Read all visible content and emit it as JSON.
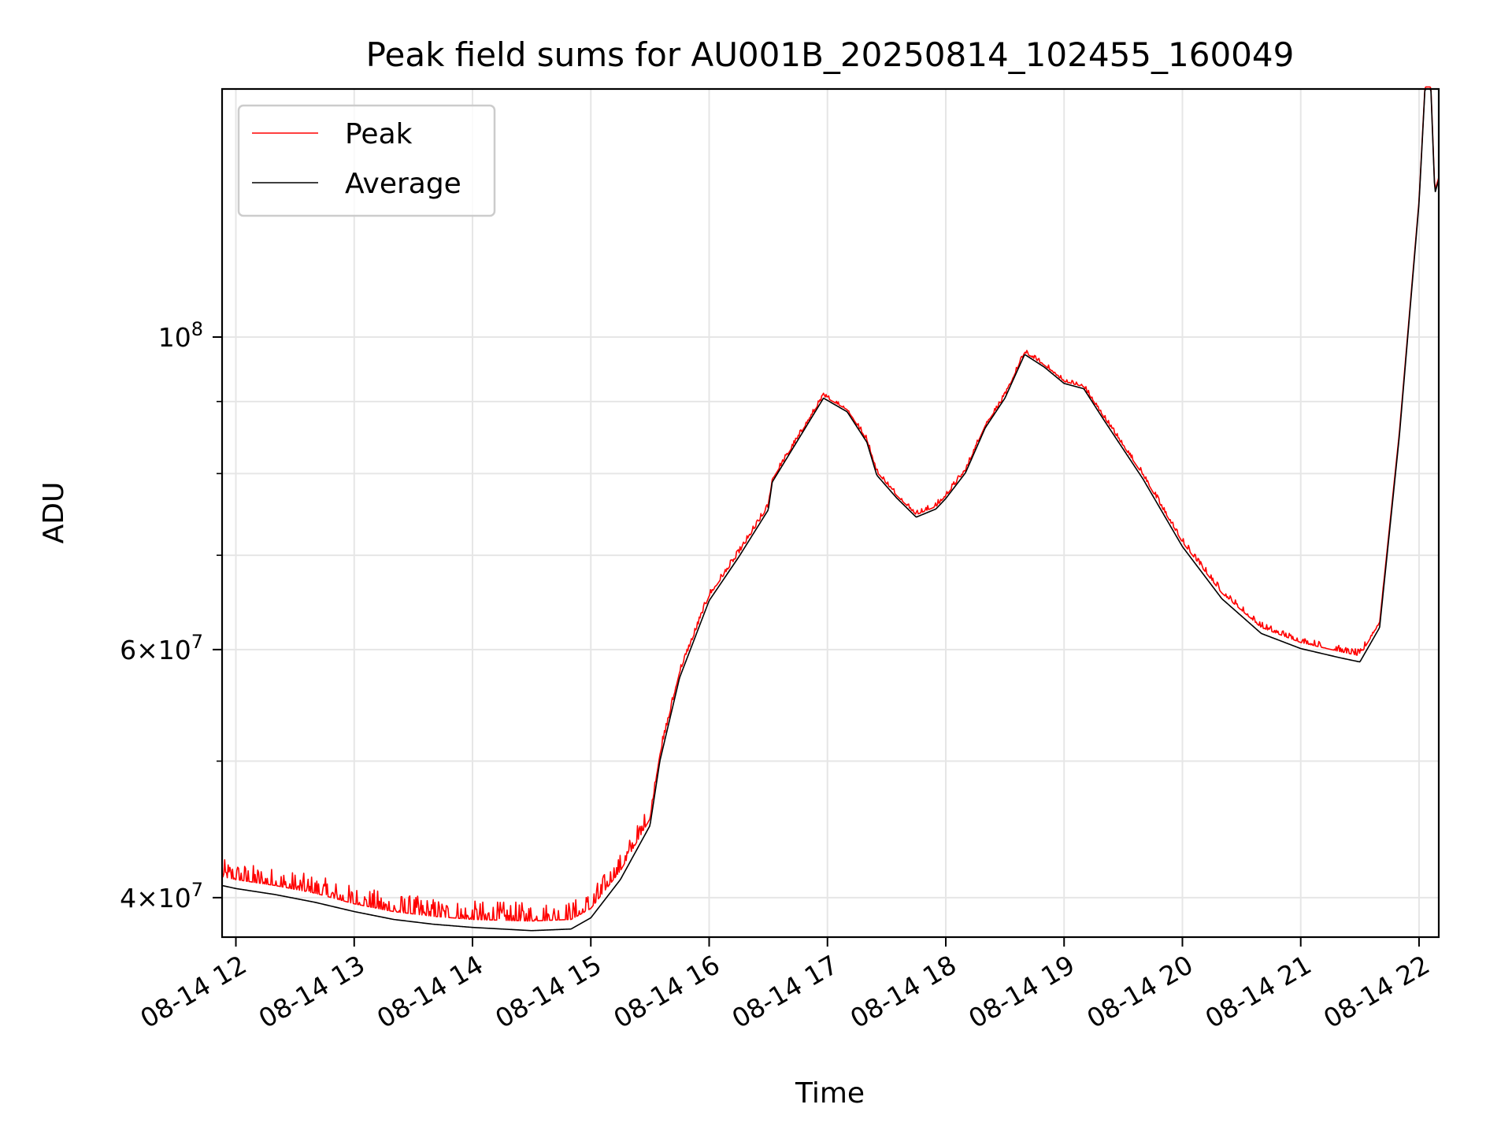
{
  "chart_data": {
    "type": "line",
    "title": "Peak field sums for AU001B_20250814_102455_160049",
    "xlabel": "Time",
    "ylabel": "ADU",
    "y_scale": "log",
    "x_axis": "time (hours on 2025-08-14)",
    "xlim": [
      "08-14 11:53",
      "08-14 22:10"
    ],
    "ylim": [
      37500000,
      150000000
    ],
    "x_ticks": [
      "08-14 12",
      "08-14 13",
      "08-14 14",
      "08-14 15",
      "08-14 16",
      "08-14 17",
      "08-14 18",
      "08-14 19",
      "08-14 20",
      "08-14 21",
      "08-14 22"
    ],
    "y_ticks": [
      {
        "value": 40000000,
        "mantissa": "4",
        "times": "×",
        "base": "10",
        "exp": "7"
      },
      {
        "value": 60000000,
        "mantissa": "6",
        "times": "×",
        "base": "10",
        "exp": "7"
      },
      {
        "value": 100000000,
        "mantissa": "",
        "times": "",
        "base": "10",
        "exp": "8"
      }
    ],
    "y_minor_ticks": [
      50000000,
      70000000,
      80000000,
      90000000
    ],
    "grid": true,
    "legend_position": "top-left",
    "series": [
      {
        "name": "Peak",
        "color": "#ff0000",
        "noise_amplitude": 1200000,
        "points": [
          [
            "08-14 11:53",
            41400000
          ],
          [
            "08-14 12:00",
            41200000
          ],
          [
            "08-14 12:20",
            40800000
          ],
          [
            "08-14 12:40",
            40300000
          ],
          [
            "08-14 13:00",
            39600000
          ],
          [
            "08-14 13:20",
            39100000
          ],
          [
            "08-14 13:40",
            38800000
          ],
          [
            "08-14 14:00",
            38600000
          ],
          [
            "08-14 14:30",
            38500000
          ],
          [
            "08-14 14:50",
            38600000
          ],
          [
            "08-14 15:00",
            39300000
          ],
          [
            "08-14 15:15",
            41800000
          ],
          [
            "08-14 15:30",
            45500000
          ],
          [
            "08-14 15:35",
            50500000
          ],
          [
            "08-14 15:45",
            57800000
          ],
          [
            "08-14 16:00",
            65500000
          ],
          [
            "08-14 16:15",
            70200000
          ],
          [
            "08-14 16:30",
            75800000
          ],
          [
            "08-14 16:32",
            79200000
          ],
          [
            "08-14 16:45",
            84800000
          ],
          [
            "08-14 16:58",
            90800000
          ],
          [
            "08-14 17:10",
            88800000
          ],
          [
            "08-14 17:20",
            84500000
          ],
          [
            "08-14 17:25",
            80200000
          ],
          [
            "08-14 17:35",
            77200000
          ],
          [
            "08-14 17:45",
            74800000
          ],
          [
            "08-14 17:55",
            75800000
          ],
          [
            "08-14 18:00",
            77100000
          ],
          [
            "08-14 18:10",
            80400000
          ],
          [
            "08-14 18:20",
            86500000
          ],
          [
            "08-14 18:30",
            90800000
          ],
          [
            "08-14 18:40",
            97500000
          ],
          [
            "08-14 18:50",
            95500000
          ],
          [
            "08-14 19:00",
            93000000
          ],
          [
            "08-14 19:10",
            92200000
          ],
          [
            "08-14 19:20",
            87800000
          ],
          [
            "08-14 19:40",
            79800000
          ],
          [
            "08-14 20:00",
            71500000
          ],
          [
            "08-14 20:20",
            65800000
          ],
          [
            "08-14 20:40",
            62200000
          ],
          [
            "08-14 21:00",
            60700000
          ],
          [
            "08-14 21:20",
            59800000
          ],
          [
            "08-14 21:30",
            59400000
          ],
          [
            "08-14 21:40",
            62700000
          ],
          [
            "08-14 21:50",
            85500000
          ],
          [
            "08-14 22:00",
            125000000
          ],
          [
            "08-14 22:03",
            150500000
          ],
          [
            "08-14 22:06",
            150500000
          ],
          [
            "08-14 22:08",
            127000000
          ],
          [
            "08-14 22:10",
            129800000
          ]
        ]
      },
      {
        "name": "Average",
        "color": "#000000",
        "noise_amplitude": 0,
        "points": [
          [
            "08-14 11:53",
            40800000
          ],
          [
            "08-14 12:00",
            40600000
          ],
          [
            "08-14 12:20",
            40200000
          ],
          [
            "08-14 12:40",
            39700000
          ],
          [
            "08-14 13:00",
            39100000
          ],
          [
            "08-14 13:20",
            38600000
          ],
          [
            "08-14 13:40",
            38300000
          ],
          [
            "08-14 14:00",
            38100000
          ],
          [
            "08-14 14:30",
            37900000
          ],
          [
            "08-14 14:50",
            38000000
          ],
          [
            "08-14 15:00",
            38700000
          ],
          [
            "08-14 15:15",
            41200000
          ],
          [
            "08-14 15:30",
            45000000
          ],
          [
            "08-14 15:35",
            50000000
          ],
          [
            "08-14 15:45",
            57300000
          ],
          [
            "08-14 16:00",
            65000000
          ],
          [
            "08-14 16:15",
            69800000
          ],
          [
            "08-14 16:30",
            75400000
          ],
          [
            "08-14 16:32",
            78900000
          ],
          [
            "08-14 16:45",
            84500000
          ],
          [
            "08-14 16:58",
            90500000
          ],
          [
            "08-14 17:10",
            88500000
          ],
          [
            "08-14 17:20",
            84200000
          ],
          [
            "08-14 17:25",
            79800000
          ],
          [
            "08-14 17:35",
            76900000
          ],
          [
            "08-14 17:45",
            74500000
          ],
          [
            "08-14 17:55",
            75500000
          ],
          [
            "08-14 18:00",
            76800000
          ],
          [
            "08-14 18:10",
            80100000
          ],
          [
            "08-14 18:20",
            86200000
          ],
          [
            "08-14 18:30",
            90500000
          ],
          [
            "08-14 18:40",
            97200000
          ],
          [
            "08-14 18:50",
            95200000
          ],
          [
            "08-14 19:00",
            92700000
          ],
          [
            "08-14 19:10",
            91900000
          ],
          [
            "08-14 19:20",
            87400000
          ],
          [
            "08-14 19:40",
            79300000
          ],
          [
            "08-14 20:00",
            71000000
          ],
          [
            "08-14 20:20",
            65200000
          ],
          [
            "08-14 20:40",
            61600000
          ],
          [
            "08-14 21:00",
            60100000
          ],
          [
            "08-14 21:20",
            59200000
          ],
          [
            "08-14 21:30",
            58800000
          ],
          [
            "08-14 21:40",
            62200000
          ],
          [
            "08-14 21:50",
            85000000
          ],
          [
            "08-14 22:00",
            124500000
          ],
          [
            "08-14 22:03",
            150000000
          ],
          [
            "08-14 22:06",
            150000000
          ],
          [
            "08-14 22:08",
            126500000
          ],
          [
            "08-14 22:10",
            129300000
          ]
        ]
      }
    ]
  }
}
